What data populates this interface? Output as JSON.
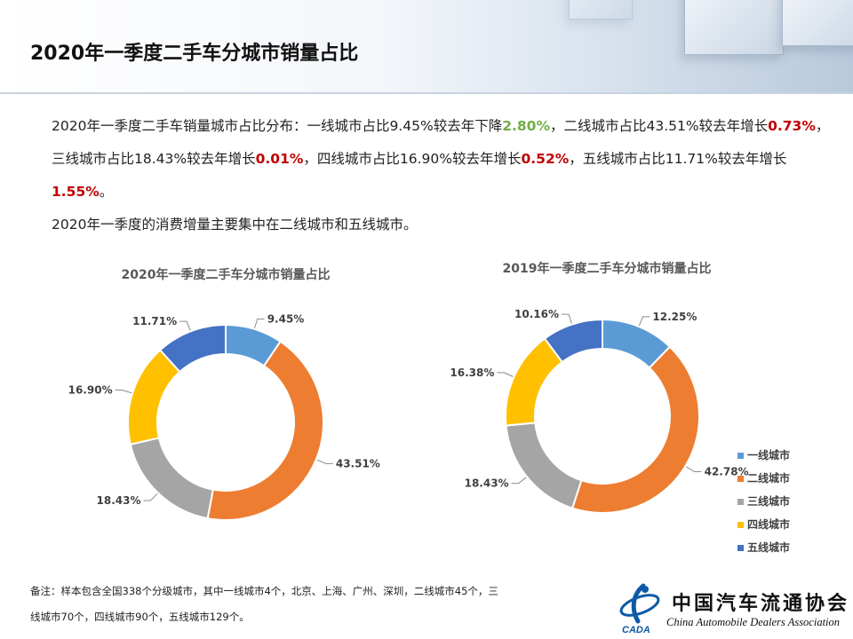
{
  "title": "2020年一季度二手车分城市销量占比",
  "summary": {
    "t1": "2020年一季度二手车销量城市占比分布：一线城市占比9.45%较去年下降",
    "h1": "2.80%",
    "t2": "，二线城市占比43.51%较去年增长",
    "h2": "0.73%",
    "t3": "，三线城市占比18.43%较去年增长",
    "h3": "0.01%",
    "t4": "，四线城市占比16.90%较去年增长",
    "h4": "0.52%",
    "t5": "，五线城市占比11.71%较去年增长",
    "h5": "1.55%",
    "t6": "。",
    "line2": "2020年一季度的消费增量主要集中在二线城市和五线城市。"
  },
  "chart_data": [
    {
      "type": "pie",
      "title": "2020年一季度二手车分城市销量占比",
      "categories": [
        "一线城市",
        "二线城市",
        "三线城市",
        "四线城市",
        "五线城市"
      ],
      "values": [
        9.45,
        43.51,
        18.43,
        16.9,
        11.71
      ],
      "labels": [
        "9.45%",
        "43.51%",
        "18.43%",
        "16.90%",
        "11.71%"
      ],
      "colors": [
        "#5b9bd5",
        "#ed7d31",
        "#a5a5a5",
        "#ffc000",
        "#4472c4"
      ]
    },
    {
      "type": "pie",
      "title": "2019年一季度二手车分城市销量占比",
      "categories": [
        "一线城市",
        "二线城市",
        "三线城市",
        "四线城市",
        "五线城市"
      ],
      "values": [
        12.25,
        42.78,
        18.43,
        16.38,
        10.16
      ],
      "labels": [
        "12.25%",
        "42.78%",
        "18.43%",
        "16.38%",
        "10.16%"
      ],
      "colors": [
        "#5b9bd5",
        "#ed7d31",
        "#a5a5a5",
        "#ffc000",
        "#4472c4"
      ],
      "legend_position": "right"
    }
  ],
  "legend": [
    "一线城市",
    "二线城市",
    "三线城市",
    "四线城市",
    "五线城市"
  ],
  "note": {
    "line1": "备注：样本包含全国338个分级城市，其中一线城市4个，北京、上海、广州、深圳，二线城市45个，三",
    "line2": "线城市70个，四线城市90个，五线城市129个。"
  },
  "logo": {
    "cn": "中国汽车流通协会",
    "en": "China Automobile Dealers Association",
    "abbr": "CADA"
  }
}
